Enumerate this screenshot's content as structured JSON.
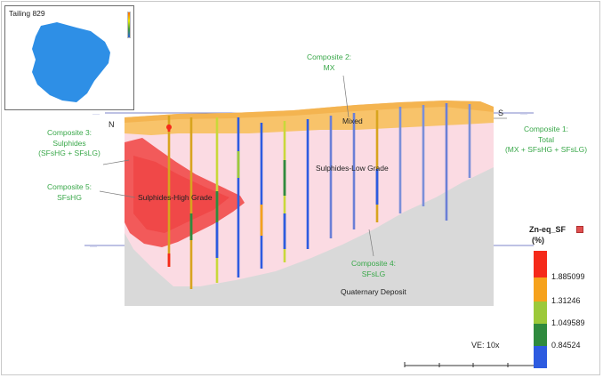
{
  "inset": {
    "title": "Tailing 829"
  },
  "section": {
    "north_label": "N",
    "south_label": "S",
    "mixed_label": "Mixed",
    "low_grade_label": "Sulphides-Low Grade",
    "high_grade_label": "Sulphides-High Grade",
    "quaternary_label": "Quaternary Deposit"
  },
  "composites": {
    "c2": [
      "Composite 2:",
      "MX"
    ],
    "c3": [
      "Composite 3:",
      "Sulphides",
      "(SFsHG + SFsLG)"
    ],
    "c1": [
      "Composite 1:",
      "Total",
      "(MX + SFsHG + SFsLG)"
    ],
    "c5": [
      "Composite 5:",
      "SFsHG"
    ],
    "c4": [
      "Composite 4:",
      "SFsLG"
    ]
  },
  "legend": {
    "title": "Zn-eq_SF",
    "unit": "(%)",
    "labels": [
      "1.885099",
      "1.31246",
      "1.049589",
      "0.84524"
    ],
    "colors": [
      "#f52a1a",
      "#f6a21c",
      "#9cc93a",
      "#2f8a3e",
      "#2d5be0"
    ]
  },
  "scale": {
    "ve_label": "VE: 10x"
  },
  "colors": {
    "high_grade": "#f25a5a",
    "low_grade": "#fbdbe3",
    "mixed": "#f8c36a",
    "quaternary": "#d9d9d9",
    "tailing_shape": "#2e8fe6",
    "annotation": "#3aa84a"
  }
}
